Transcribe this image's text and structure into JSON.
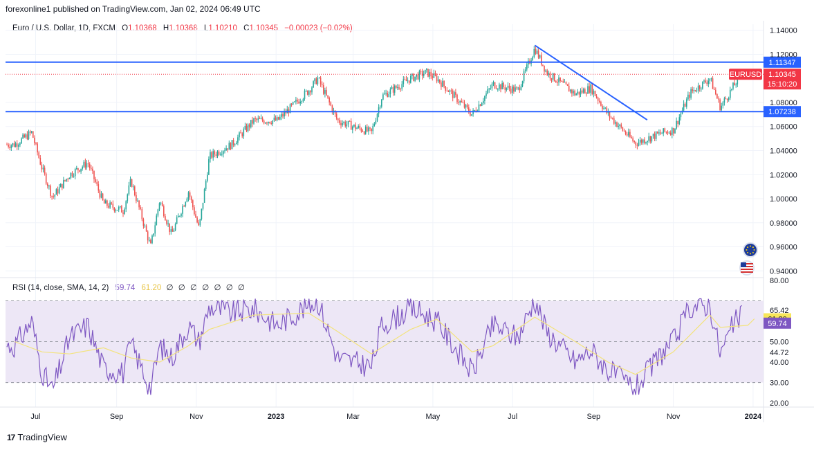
{
  "header": {
    "publisher": "forexonline1 published on TradingView.com, Jan 02, 2024 06:49 UTC"
  },
  "legend": {
    "symbol": "Euro / U.S. Dollar, 1D, FXCM",
    "o_label": "O",
    "o": "1.10368",
    "h_label": "H",
    "h": "1.10368",
    "l_label": "L",
    "l": "1.10210",
    "c_label": "C",
    "c": "1.10345",
    "change": "−0.00023 (−0.02%)"
  },
  "rsi_legend": {
    "label": "RSI (14, close, SMA, 14, 2)",
    "rsi": "59.74",
    "sma": "61.20",
    "extras": [
      "∅",
      "∅",
      "∅",
      "∅",
      "∅",
      "∅",
      "∅"
    ]
  },
  "footer": {
    "brand": "TradingView",
    "logo": "17"
  },
  "colors": {
    "up": "#26a69a",
    "down": "#ef5350",
    "level": "#2962ff",
    "trend": "#2962ff",
    "rsi": "#7e57c2",
    "sma": "#f3e37c",
    "rsi_band": "#ede7f6",
    "price_label": "#f23645"
  },
  "chart_data": [
    {
      "type": "candlestick",
      "symbol": "EURUSD",
      "title": "Euro / U.S. Dollar, 1D, FXCM",
      "x_ticks": [
        "Jul",
        "Sep",
        "Nov",
        "2023",
        "Mar",
        "May",
        "Jul",
        "Sep",
        "Nov",
        "2024"
      ],
      "y_ticks": [
        "1.14000",
        "1.12000",
        "1.08000",
        "1.06000",
        "1.04000",
        "1.02000",
        "1.00000",
        "0.98000",
        "0.96000",
        "0.94000"
      ],
      "ylim": [
        0.935,
        1.145
      ],
      "grid": true,
      "horizontal_levels": [
        {
          "label": "1.11347",
          "value": 1.11347
        },
        {
          "label": "1.07238",
          "value": 1.07238
        }
      ],
      "current_price": {
        "symbol": "EURUSD",
        "value": "1.10345",
        "countdown": "15:10:20"
      },
      "trendline": {
        "start": {
          "date": "2023-07-18",
          "value": 1.1275
        },
        "end": {
          "date": "2023-10-12",
          "value": 1.0655
        }
      },
      "close_path": [
        [
          "2022-06-15",
          1.045
        ],
        [
          "2022-06-28",
          1.055
        ],
        [
          "2022-07-06",
          1.025
        ],
        [
          "2022-07-14",
          1.001
        ],
        [
          "2022-07-27",
          1.02
        ],
        [
          "2022-08-10",
          1.03
        ],
        [
          "2022-08-22",
          0.996
        ],
        [
          "2022-09-06",
          0.99
        ],
        [
          "2022-09-12",
          1.015
        ],
        [
          "2022-09-27",
          0.96
        ],
        [
          "2022-10-04",
          0.999
        ],
        [
          "2022-10-13",
          0.97
        ],
        [
          "2022-10-26",
          1.006
        ],
        [
          "2022-11-03",
          0.975
        ],
        [
          "2022-11-11",
          1.035
        ],
        [
          "2022-11-28",
          1.045
        ],
        [
          "2022-12-15",
          1.065
        ],
        [
          "2023-01-02",
          1.065
        ],
        [
          "2023-01-26",
          1.09
        ],
        [
          "2023-02-02",
          1.1
        ],
        [
          "2023-02-17",
          1.065
        ],
        [
          "2023-03-01",
          1.06
        ],
        [
          "2023-03-15",
          1.055
        ],
        [
          "2023-03-23",
          1.085
        ],
        [
          "2023-04-14",
          1.1
        ],
        [
          "2023-04-26",
          1.105
        ],
        [
          "2023-05-04",
          1.1
        ],
        [
          "2023-05-31",
          1.07
        ],
        [
          "2023-06-16",
          1.095
        ],
        [
          "2023-07-05",
          1.09
        ],
        [
          "2023-07-18",
          1.125
        ],
        [
          "2023-07-27",
          1.105
        ],
        [
          "2023-08-18",
          1.087
        ],
        [
          "2023-08-30",
          1.092
        ],
        [
          "2023-09-12",
          1.07
        ],
        [
          "2023-10-03",
          1.046
        ],
        [
          "2023-10-24",
          1.055
        ],
        [
          "2023-11-01",
          1.057
        ],
        [
          "2023-11-14",
          1.088
        ],
        [
          "2023-11-29",
          1.1
        ],
        [
          "2023-12-07",
          1.076
        ],
        [
          "2023-12-18",
          1.095
        ],
        [
          "2023-12-28",
          1.112
        ],
        [
          "2024-01-02",
          1.10345
        ]
      ]
    },
    {
      "type": "line",
      "title": "RSI (14, close, SMA, 14, 2)",
      "y_ticks": [
        "80.00",
        "65.42",
        "50.00",
        "44.72",
        "40.00",
        "30.00",
        "20.00"
      ],
      "ylim": [
        18,
        81
      ],
      "bands": {
        "upper": 70,
        "middle": 50,
        "lower": 30
      },
      "last": {
        "rsi": "59.74",
        "sma": "61.20"
      },
      "series": [
        {
          "values": [
            [
              "2022-06-15",
              48
            ],
            [
              "2022-06-28",
              60
            ],
            [
              "2022-07-06",
              35
            ],
            [
              "2022-07-14",
              26
            ],
            [
              "2022-07-27",
              52
            ],
            [
              "2022-08-10",
              58
            ],
            [
              "2022-08-22",
              37
            ],
            [
              "2022-09-06",
              35
            ],
            [
              "2022-09-12",
              49
            ],
            [
              "2022-09-27",
              27
            ],
            [
              "2022-10-04",
              48
            ],
            [
              "2022-10-13",
              42
            ],
            [
              "2022-10-26",
              58
            ],
            [
              "2022-11-03",
              50
            ],
            [
              "2022-11-11",
              67
            ],
            [
              "2022-11-28",
              64
            ],
            [
              "2022-12-15",
              66
            ],
            [
              "2023-01-02",
              58
            ],
            [
              "2023-01-26",
              68
            ],
            [
              "2023-02-02",
              70
            ],
            [
              "2023-02-17",
              42
            ],
            [
              "2023-03-01",
              40
            ],
            [
              "2023-03-15",
              38
            ],
            [
              "2023-03-23",
              58
            ],
            [
              "2023-04-14",
              66
            ],
            [
              "2023-04-26",
              63
            ],
            [
              "2023-05-04",
              60
            ],
            [
              "2023-05-31",
              35
            ],
            [
              "2023-06-16",
              58
            ],
            [
              "2023-07-05",
              52
            ],
            [
              "2023-07-18",
              71
            ],
            [
              "2023-07-27",
              55
            ],
            [
              "2023-08-18",
              40
            ],
            [
              "2023-08-30",
              46
            ],
            [
              "2023-09-12",
              36
            ],
            [
              "2023-10-03",
              27
            ],
            [
              "2023-10-24",
              45
            ],
            [
              "2023-11-01",
              50
            ],
            [
              "2023-11-14",
              67
            ],
            [
              "2023-11-29",
              68
            ],
            [
              "2023-12-07",
              44
            ],
            [
              "2023-12-18",
              60
            ],
            [
              "2023-12-28",
              64
            ],
            [
              "2024-01-02",
              59.74
            ]
          ]
        },
        {
          "values": [
            [
              "2022-06-15",
              50
            ],
            [
              "2022-07-06",
              45
            ],
            [
              "2022-07-27",
              44
            ],
            [
              "2022-08-22",
              47
            ],
            [
              "2022-09-12",
              42
            ],
            [
              "2022-10-04",
              40
            ],
            [
              "2022-10-26",
              48
            ],
            [
              "2022-11-11",
              56
            ],
            [
              "2022-12-15",
              63
            ],
            [
              "2023-01-26",
              64
            ],
            [
              "2023-02-17",
              55
            ],
            [
              "2023-03-15",
              44
            ],
            [
              "2023-04-14",
              56
            ],
            [
              "2023-05-04",
              61
            ],
            [
              "2023-05-31",
              45
            ],
            [
              "2023-06-16",
              48
            ],
            [
              "2023-07-18",
              62
            ],
            [
              "2023-08-18",
              50
            ],
            [
              "2023-09-12",
              40
            ],
            [
              "2023-10-03",
              34
            ],
            [
              "2023-11-01",
              45
            ],
            [
              "2023-11-29",
              63
            ],
            [
              "2023-12-07",
              57
            ],
            [
              "2023-12-28",
              58
            ],
            [
              "2024-01-02",
              61.2
            ]
          ]
        }
      ]
    }
  ]
}
